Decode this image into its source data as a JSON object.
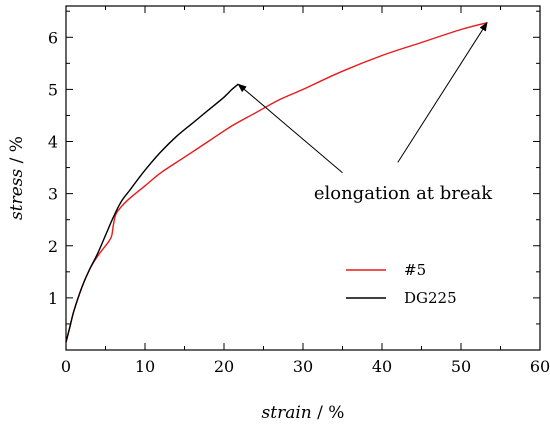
{
  "chart_data": {
    "type": "line",
    "title": "",
    "xlabel": {
      "italic": "strain",
      "unit": " / %"
    },
    "ylabel": {
      "italic": "stress",
      "unit": " / %"
    },
    "xlim": [
      0,
      60
    ],
    "ylim": [
      0,
      6.6
    ],
    "xticks": [
      0,
      10,
      20,
      30,
      40,
      50,
      60
    ],
    "yticks": [
      1,
      2,
      3,
      4,
      5,
      6
    ],
    "grid": false,
    "legend_position": "lower-right",
    "series": [
      {
        "name": "#5",
        "color": "#e8191b",
        "x": [
          0,
          0.5,
          1,
          2,
          3,
          4,
          5,
          5.5,
          5.8,
          6,
          6.3,
          7,
          8,
          10,
          12,
          15,
          18,
          21,
          24,
          27,
          30,
          35,
          40,
          45,
          50,
          53.3
        ],
        "y": [
          0.15,
          0.45,
          0.75,
          1.2,
          1.55,
          1.8,
          2.0,
          2.1,
          2.2,
          2.4,
          2.6,
          2.75,
          2.9,
          3.15,
          3.4,
          3.7,
          4.0,
          4.3,
          4.55,
          4.8,
          5.0,
          5.35,
          5.65,
          5.9,
          6.15,
          6.28
        ]
      },
      {
        "name": "DG225",
        "color": "#000000",
        "x": [
          0,
          0.5,
          1,
          2,
          3,
          4,
          5,
          6,
          7,
          8,
          10,
          12,
          14,
          16,
          18,
          20,
          21,
          21.8
        ],
        "y": [
          0.15,
          0.45,
          0.75,
          1.2,
          1.55,
          1.85,
          2.2,
          2.55,
          2.85,
          3.05,
          3.45,
          3.8,
          4.1,
          4.35,
          4.6,
          4.85,
          5.0,
          5.1
        ]
      }
    ],
    "annotation": {
      "text": "elongation at break",
      "arrows": [
        {
          "from": [
            35,
            3.4
          ],
          "to": [
            21.8,
            5.1
          ]
        },
        {
          "from": [
            42,
            3.6
          ],
          "to": [
            53.3,
            6.28
          ]
        }
      ]
    }
  }
}
